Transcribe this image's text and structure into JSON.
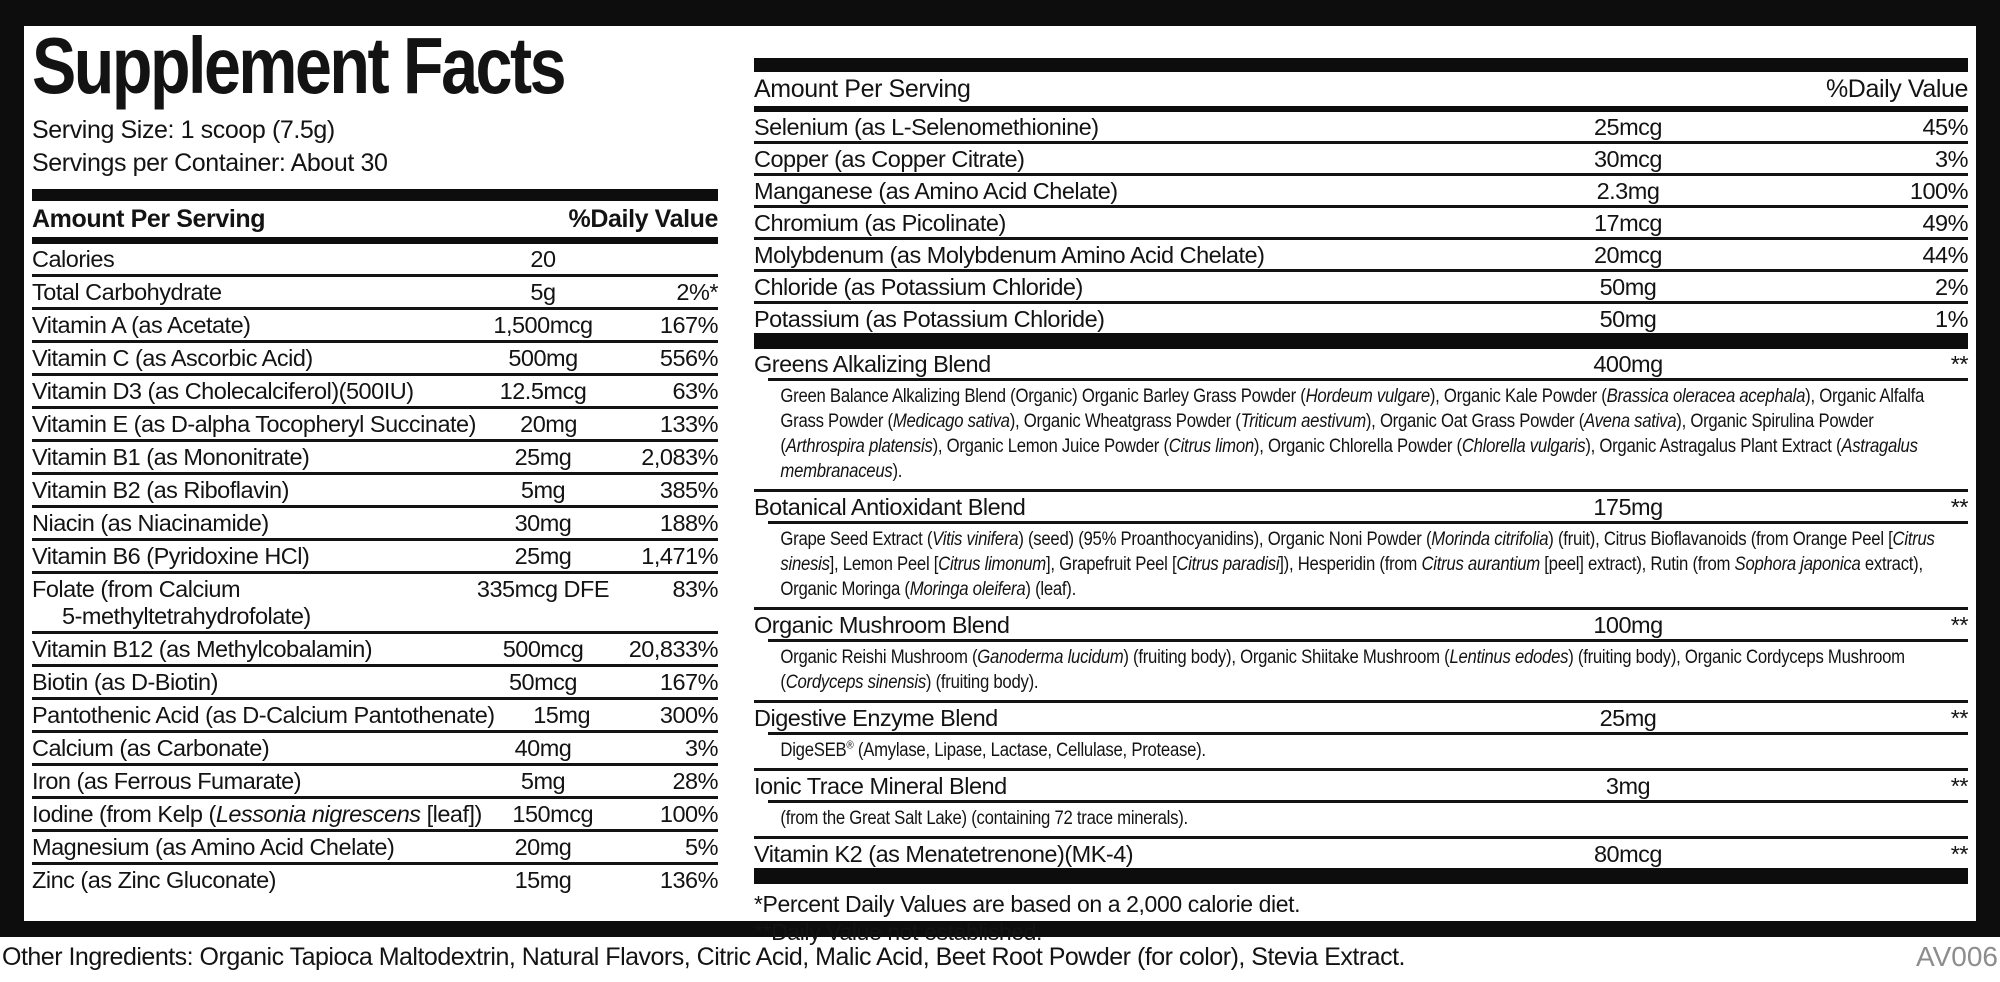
{
  "colors": {
    "ink": "#131313",
    "bar": "#0d0d0d",
    "code_gray": "#8d8d8d"
  },
  "label": {
    "title": "Supplement Facts",
    "serving_size": "Serving Size: 1 scoop (7.5g)",
    "servings_per_container": "Servings per Container: About 30",
    "col_headers": {
      "amount": "Amount Per Serving",
      "daily_value": "%Daily Value"
    }
  },
  "left_table": {
    "rows": [
      {
        "name": [
          {
            "t": "Calories"
          }
        ],
        "amount": "20",
        "dv": ""
      },
      {
        "name": [
          {
            "t": "Total Carbohydrate"
          }
        ],
        "amount": "5g",
        "dv": "2%*"
      },
      {
        "name": [
          {
            "t": "Vitamin A (as Acetate)"
          }
        ],
        "amount": "1,500mcg",
        "dv": "167%"
      },
      {
        "name": [
          {
            "t": "Vitamin C (as Ascorbic Acid)"
          }
        ],
        "amount": "500mg",
        "dv": "556%"
      },
      {
        "name": [
          {
            "t": "Vitamin D3 (as Cholecalciferol)(500IU)"
          }
        ],
        "amount": "12.5mcg",
        "dv": "63%"
      },
      {
        "name": [
          {
            "t": "Vitamin E (as D-alpha Tocopheryl Succinate)"
          }
        ],
        "amount": "20mg",
        "dv": "133%"
      },
      {
        "name": [
          {
            "t": "Vitamin B1 (as Mononitrate)"
          }
        ],
        "amount": "25mg",
        "dv": "2,083%"
      },
      {
        "name": [
          {
            "t": "Vitamin B2 (as Riboflavin)"
          }
        ],
        "amount": "5mg",
        "dv": "385%"
      },
      {
        "name": [
          {
            "t": "Niacin (as Niacinamide)"
          }
        ],
        "amount": "30mg",
        "dv": "188%"
      },
      {
        "name": [
          {
            "t": "Vitamin B6 (Pyridoxine HCl)"
          }
        ],
        "amount": "25mg",
        "dv": "1,471%"
      },
      {
        "name": [
          {
            "t": "Folate (from Calcium"
          }
        ],
        "name2": "5-methyltetrahydrofolate)",
        "amount": "335mcg DFE",
        "dv": "83%"
      },
      {
        "name": [
          {
            "t": "Vitamin B12 (as Methylcobalamin)"
          }
        ],
        "amount": "500mcg",
        "dv": "20,833%"
      },
      {
        "name": [
          {
            "t": "Biotin (as D-Biotin)"
          }
        ],
        "amount": "50mcg",
        "dv": "167%"
      },
      {
        "name": [
          {
            "t": "Pantothenic Acid (as D-Calcium Pantothenate)"
          }
        ],
        "amount": "15mg",
        "dv": "300%"
      },
      {
        "name": [
          {
            "t": "Calcium (as Carbonate)"
          }
        ],
        "amount": "40mg",
        "dv": "3%"
      },
      {
        "name": [
          {
            "t": "Iron (as Ferrous Fumarate)"
          }
        ],
        "amount": "5mg",
        "dv": "28%"
      },
      {
        "name": [
          {
            "t": "Iodine (from Kelp ("
          },
          {
            "t": "Lessonia nigrescens",
            "i": true
          },
          {
            "t": " [leaf])"
          }
        ],
        "amount": "150mcg",
        "dv": "100%"
      },
      {
        "name": [
          {
            "t": "Magnesium (as Amino Acid Chelate)"
          }
        ],
        "amount": "20mg",
        "dv": "5%"
      },
      {
        "name": [
          {
            "t": "Zinc (as Zinc Gluconate)"
          }
        ],
        "amount": "15mg",
        "dv": "136%"
      }
    ]
  },
  "right_table": {
    "rows": [
      {
        "name": [
          {
            "t": "Selenium (as L-Selenomethionine)"
          }
        ],
        "amount": "25mcg",
        "dv": "45%"
      },
      {
        "name": [
          {
            "t": "Copper (as Copper Citrate)"
          }
        ],
        "amount": "30mcg",
        "dv": "3%"
      },
      {
        "name": [
          {
            "t": "Manganese (as Amino Acid Chelate)"
          }
        ],
        "amount": "2.3mg",
        "dv": "100%"
      },
      {
        "name": [
          {
            "t": "Chromium (as Picolinate)"
          }
        ],
        "amount": "17mcg",
        "dv": "49%"
      },
      {
        "name": [
          {
            "t": "Molybdenum (as Molybdenum Amino Acid Chelate)"
          }
        ],
        "amount": "20mcg",
        "dv": "44%"
      },
      {
        "name": [
          {
            "t": "Chloride (as Potassium Chloride)"
          }
        ],
        "amount": "50mg",
        "dv": "2%"
      },
      {
        "name": [
          {
            "t": "Potassium (as Potassium Chloride)"
          }
        ],
        "amount": "50mg",
        "dv": "1%"
      }
    ]
  },
  "blends": [
    {
      "name": [
        {
          "t": "Greens Alkalizing Blend"
        }
      ],
      "amount": "400mg",
      "dv": "**",
      "desc": [
        {
          "t": "Green Balance Alkalizing Blend (Organic) Organic Barley Grass Powder ("
        },
        {
          "t": "Hordeum vulgare",
          "i": true
        },
        {
          "t": "), Organic Kale Powder ("
        },
        {
          "t": "Brassica oleracea acephala",
          "i": true
        },
        {
          "t": "), Organic Alfalfa Grass Powder ("
        },
        {
          "t": "Medicago sativa",
          "i": true
        },
        {
          "t": "), Organic Wheatgrass Powder ("
        },
        {
          "t": "Triticum aestivum",
          "i": true
        },
        {
          "t": "), Organic Oat Grass Powder ("
        },
        {
          "t": "Avena sativa",
          "i": true
        },
        {
          "t": "), Organic Spirulina Powder ("
        },
        {
          "t": "Arthrospira platensis",
          "i": true
        },
        {
          "t": "), Organic Lemon Juice Powder ("
        },
        {
          "t": "Citrus limon",
          "i": true
        },
        {
          "t": "), Organic Chlorella Powder ("
        },
        {
          "t": "Chlorella vulgaris",
          "i": true
        },
        {
          "t": "), Organic Astragalus Plant Extract ("
        },
        {
          "t": "Astragalus membranaceus",
          "i": true
        },
        {
          "t": ")."
        }
      ]
    },
    {
      "name": [
        {
          "t": "Botanical Antioxidant Blend"
        }
      ],
      "amount": "175mg",
      "dv": "**",
      "desc": [
        {
          "t": "Grape Seed Extract ("
        },
        {
          "t": "Vitis vinifera",
          "i": true
        },
        {
          "t": ") (seed) (95% Proanthocyanidins), Organic Noni Powder ("
        },
        {
          "t": "Morinda citrifolia",
          "i": true
        },
        {
          "t": ") (fruit), Citrus Bioflavanoids (from Orange Peel ["
        },
        {
          "t": "Citrus sinesis",
          "i": true
        },
        {
          "t": "], Lemon Peel ["
        },
        {
          "t": "Citrus limonum",
          "i": true
        },
        {
          "t": "], Grapefruit Peel ["
        },
        {
          "t": "Citrus paradisi",
          "i": true
        },
        {
          "t": "]), Hesperidin (from "
        },
        {
          "t": "Citrus aurantium",
          "i": true
        },
        {
          "t": " [peel] extract), Rutin (from "
        },
        {
          "t": "Sophora japonica",
          "i": true
        },
        {
          "t": " extract), Organic Moringa ("
        },
        {
          "t": "Moringa oleifera",
          "i": true
        },
        {
          "t": ") (leaf)."
        }
      ]
    },
    {
      "name": [
        {
          "t": "Organic Mushroom Blend"
        }
      ],
      "amount": "100mg",
      "dv": "**",
      "desc": [
        {
          "t": "Organic Reishi Mushroom ("
        },
        {
          "t": "Ganoderma lucidum",
          "i": true
        },
        {
          "t": ") (fruiting body), Organic Shiitake Mushroom ("
        },
        {
          "t": "Lentinus edodes",
          "i": true
        },
        {
          "t": ") (fruiting body), Organic Cordyceps Mushroom ("
        },
        {
          "t": "Cordyceps sinensis",
          "i": true
        },
        {
          "t": ") (fruiting body)."
        }
      ]
    },
    {
      "name": [
        {
          "t": "Digestive Enzyme Blend"
        }
      ],
      "amount": "25mg",
      "dv": "**",
      "desc": [
        {
          "t": "DigeSEB"
        },
        {
          "t": "®",
          "sup": true
        },
        {
          "t": " (Amylase, Lipase, Lactase, Cellulase, Protease)."
        }
      ]
    },
    {
      "name": [
        {
          "t": "Ionic Trace Mineral Blend"
        }
      ],
      "amount": "3mg",
      "dv": "**",
      "desc": [
        {
          "t": "(from the Great Salt Lake) (containing 72 trace minerals)."
        }
      ]
    },
    {
      "name": [
        {
          "t": "Vitamin K2 (as Menatetrenone)(MK-4)"
        }
      ],
      "amount": "80mcg",
      "dv": "**",
      "desc": null
    }
  ],
  "footnotes": [
    "*Percent Daily Values are based on a 2,000 calorie diet.",
    "**Daily Value not established."
  ],
  "footer": {
    "other_ingredients": "Other Ingredients: Organic Tapioca Maltodextrin, Natural Flavors, Citric Acid, Malic Acid, Beet Root Powder (for color), Stevia Extract.",
    "code": "AV006"
  }
}
